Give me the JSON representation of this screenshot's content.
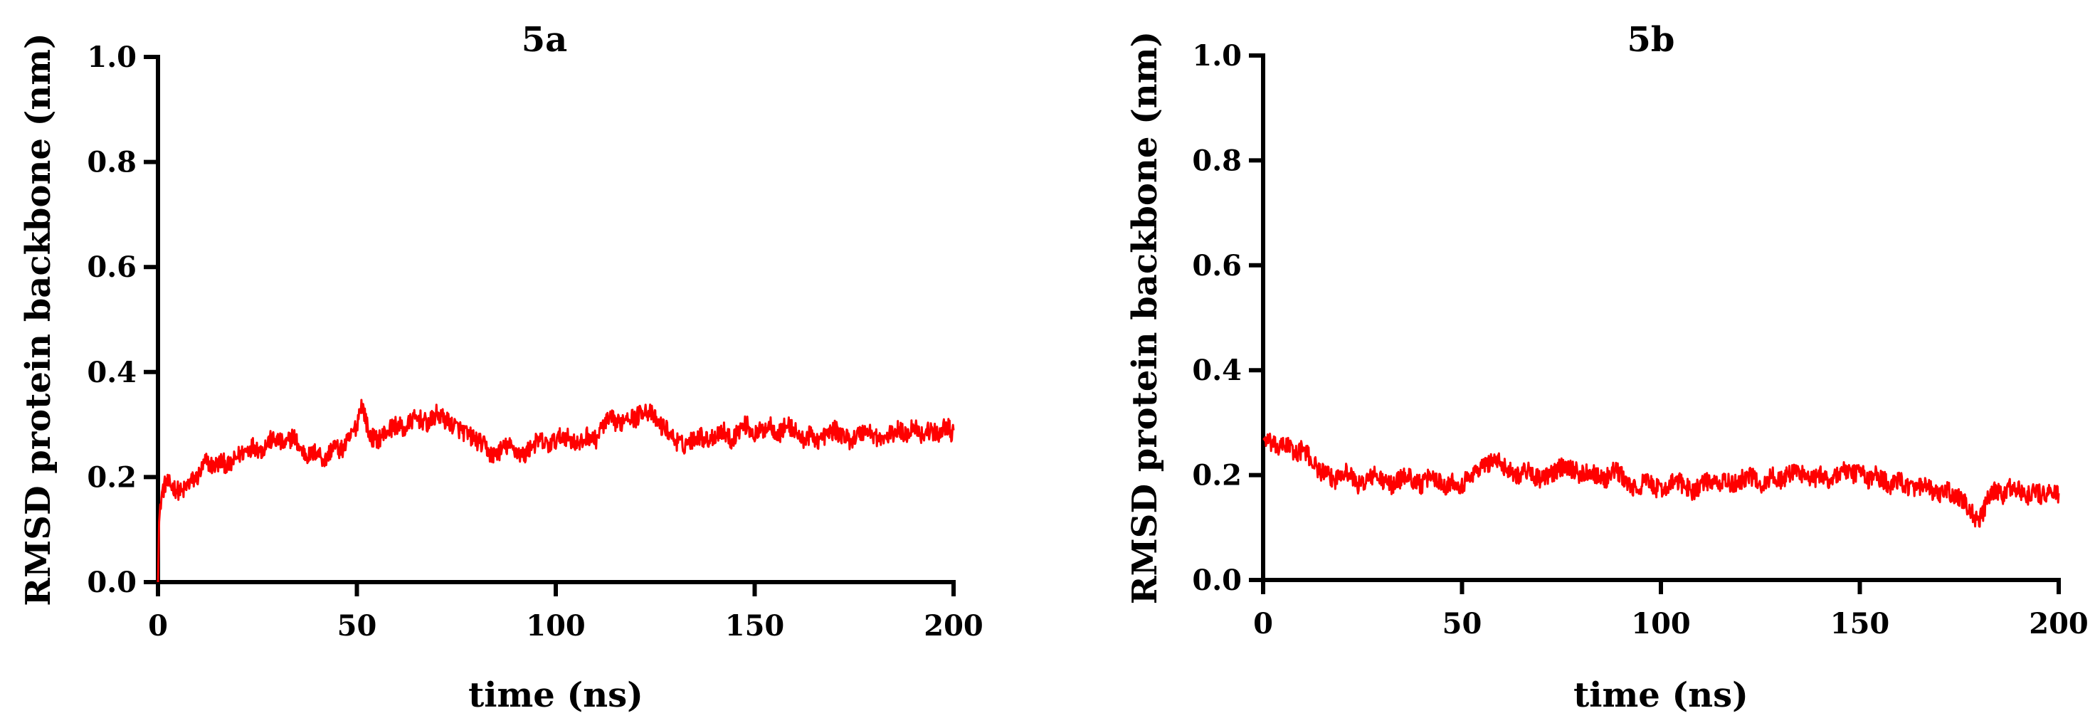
{
  "colors": {
    "series": "#ff0000",
    "axis": "#000000",
    "background": "#ffffff"
  },
  "chart_data": [
    {
      "type": "line",
      "title": "5a",
      "xlabel": "time (ns)",
      "ylabel": "RMSD protein backbone (nm)",
      "xlim": [
        0,
        200
      ],
      "ylim": [
        0,
        1.0
      ],
      "xticks": [
        "0",
        "50",
        "100",
        "150",
        "200"
      ],
      "yticks": [
        "0.0",
        "0.2",
        "0.4",
        "0.6",
        "0.8",
        "1.0"
      ],
      "grid": false,
      "series": [
        {
          "x": [
            0,
            0.3,
            1,
            2,
            4,
            6,
            8,
            10,
            12,
            14,
            16,
            18,
            20,
            22,
            24,
            26,
            28,
            30,
            32,
            34,
            36,
            38,
            40,
            42,
            44,
            46,
            48,
            50,
            51,
            52,
            53,
            55,
            58,
            60,
            62,
            64,
            66,
            68,
            70,
            72,
            74,
            76,
            78,
            80,
            82,
            84,
            86,
            88,
            90,
            92,
            94,
            96,
            98,
            100,
            102,
            104,
            106,
            108,
            110,
            112,
            114,
            116,
            118,
            120,
            122,
            124,
            126,
            128,
            130,
            132,
            134,
            136,
            138,
            140,
            142,
            144,
            146,
            148,
            150,
            152,
            154,
            156,
            158,
            160,
            162,
            164,
            166,
            168,
            170,
            172,
            174,
            176,
            178,
            180,
            182,
            184,
            186,
            188,
            190,
            192,
            194,
            196,
            198,
            200
          ],
          "y": [
            0.0,
            0.12,
            0.17,
            0.19,
            0.18,
            0.17,
            0.19,
            0.2,
            0.23,
            0.22,
            0.23,
            0.22,
            0.24,
            0.25,
            0.26,
            0.25,
            0.27,
            0.27,
            0.26,
            0.28,
            0.25,
            0.24,
            0.25,
            0.23,
            0.26,
            0.25,
            0.27,
            0.3,
            0.34,
            0.32,
            0.28,
            0.27,
            0.29,
            0.3,
            0.29,
            0.31,
            0.31,
            0.3,
            0.32,
            0.31,
            0.3,
            0.29,
            0.28,
            0.27,
            0.26,
            0.24,
            0.25,
            0.26,
            0.25,
            0.24,
            0.26,
            0.27,
            0.26,
            0.27,
            0.28,
            0.27,
            0.26,
            0.28,
            0.27,
            0.3,
            0.31,
            0.3,
            0.32,
            0.31,
            0.33,
            0.32,
            0.3,
            0.29,
            0.27,
            0.26,
            0.27,
            0.28,
            0.27,
            0.28,
            0.29,
            0.27,
            0.29,
            0.3,
            0.28,
            0.29,
            0.3,
            0.28,
            0.3,
            0.29,
            0.27,
            0.28,
            0.27,
            0.28,
            0.29,
            0.28,
            0.27,
            0.28,
            0.29,
            0.28,
            0.27,
            0.28,
            0.29,
            0.28,
            0.3,
            0.28,
            0.29,
            0.28,
            0.3,
            0.28
          ],
          "noise_amplitude": 0.018
        }
      ]
    },
    {
      "type": "line",
      "title": "5b",
      "xlabel": "time (ns)",
      "ylabel": "RMSD protein backbone (nm)",
      "xlim": [
        0,
        200
      ],
      "ylim": [
        0,
        1.0
      ],
      "xticks": [
        "0",
        "50",
        "100",
        "150",
        "200"
      ],
      "yticks": [
        "0.0",
        "0.2",
        "0.4",
        "0.6",
        "0.8",
        "1.0"
      ],
      "grid": false,
      "series": [
        {
          "x": [
            0,
            2,
            4,
            6,
            8,
            10,
            12,
            14,
            16,
            18,
            20,
            22,
            24,
            26,
            28,
            30,
            32,
            34,
            36,
            38,
            40,
            42,
            44,
            46,
            48,
            50,
            52,
            54,
            56,
            58,
            60,
            62,
            64,
            66,
            68,
            70,
            72,
            74,
            76,
            78,
            80,
            82,
            84,
            86,
            88,
            90,
            92,
            94,
            96,
            98,
            100,
            102,
            104,
            106,
            108,
            110,
            112,
            114,
            116,
            118,
            120,
            122,
            124,
            126,
            128,
            130,
            132,
            134,
            136,
            138,
            140,
            142,
            144,
            146,
            148,
            150,
            152,
            154,
            156,
            158,
            160,
            162,
            164,
            166,
            168,
            170,
            172,
            174,
            176,
            178,
            180,
            182,
            184,
            186,
            188,
            190,
            192,
            194,
            196,
            198,
            200
          ],
          "y": [
            0.27,
            0.26,
            0.25,
            0.26,
            0.24,
            0.25,
            0.23,
            0.21,
            0.2,
            0.19,
            0.21,
            0.2,
            0.18,
            0.19,
            0.2,
            0.19,
            0.18,
            0.19,
            0.2,
            0.19,
            0.18,
            0.2,
            0.19,
            0.18,
            0.19,
            0.18,
            0.2,
            0.21,
            0.22,
            0.23,
            0.22,
            0.21,
            0.2,
            0.21,
            0.2,
            0.19,
            0.2,
            0.21,
            0.22,
            0.21,
            0.2,
            0.21,
            0.2,
            0.19,
            0.21,
            0.2,
            0.18,
            0.17,
            0.19,
            0.18,
            0.17,
            0.18,
            0.19,
            0.18,
            0.17,
            0.18,
            0.19,
            0.18,
            0.19,
            0.18,
            0.19,
            0.2,
            0.19,
            0.18,
            0.2,
            0.19,
            0.2,
            0.21,
            0.2,
            0.19,
            0.2,
            0.19,
            0.2,
            0.21,
            0.2,
            0.21,
            0.19,
            0.2,
            0.19,
            0.18,
            0.19,
            0.18,
            0.17,
            0.18,
            0.17,
            0.16,
            0.17,
            0.16,
            0.15,
            0.13,
            0.11,
            0.15,
            0.17,
            0.16,
            0.18,
            0.17,
            0.16,
            0.17,
            0.16,
            0.17,
            0.16
          ],
          "noise_amplitude": 0.018
        }
      ]
    }
  ]
}
